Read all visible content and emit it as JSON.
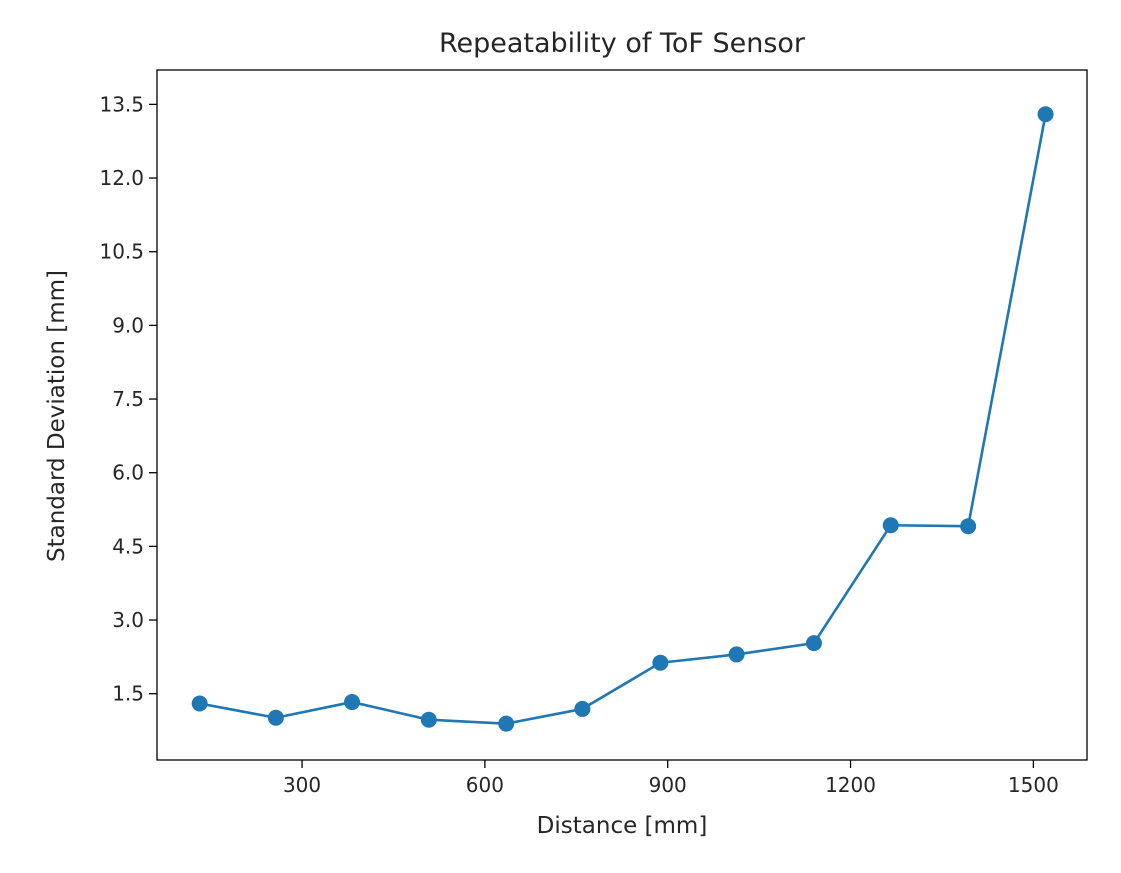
{
  "chart_data": {
    "type": "line",
    "title": "Repeatability of ToF Sensor",
    "xlabel": "Distance [mm]",
    "ylabel": "Standard Deviation [mm]",
    "xlim": [
      62,
      1588
    ],
    "ylim": [
      0.15,
      14.2
    ],
    "xticks": [
      300,
      600,
      900,
      1200,
      1500
    ],
    "yticks": [
      1.5,
      3.0,
      4.5,
      6.0,
      7.5,
      9.0,
      10.5,
      12.0,
      13.5
    ],
    "xtick_labels": [
      "300",
      "600",
      "900",
      "1200",
      "1500"
    ],
    "ytick_labels": [
      "1.5",
      "3.0",
      "4.5",
      "6.0",
      "7.5",
      "9.0",
      "10.5",
      "12.0",
      "13.5"
    ],
    "grid": false,
    "series": [
      {
        "color": "#1f77b4",
        "marker": "circle",
        "x": [
          132,
          257,
          382,
          508,
          635,
          760,
          888,
          1013,
          1140,
          1266,
          1393,
          1520
        ],
        "y": [
          1.3,
          1.01,
          1.33,
          0.97,
          0.89,
          1.19,
          2.13,
          2.3,
          2.53,
          4.93,
          4.91,
          13.3
        ]
      }
    ]
  }
}
